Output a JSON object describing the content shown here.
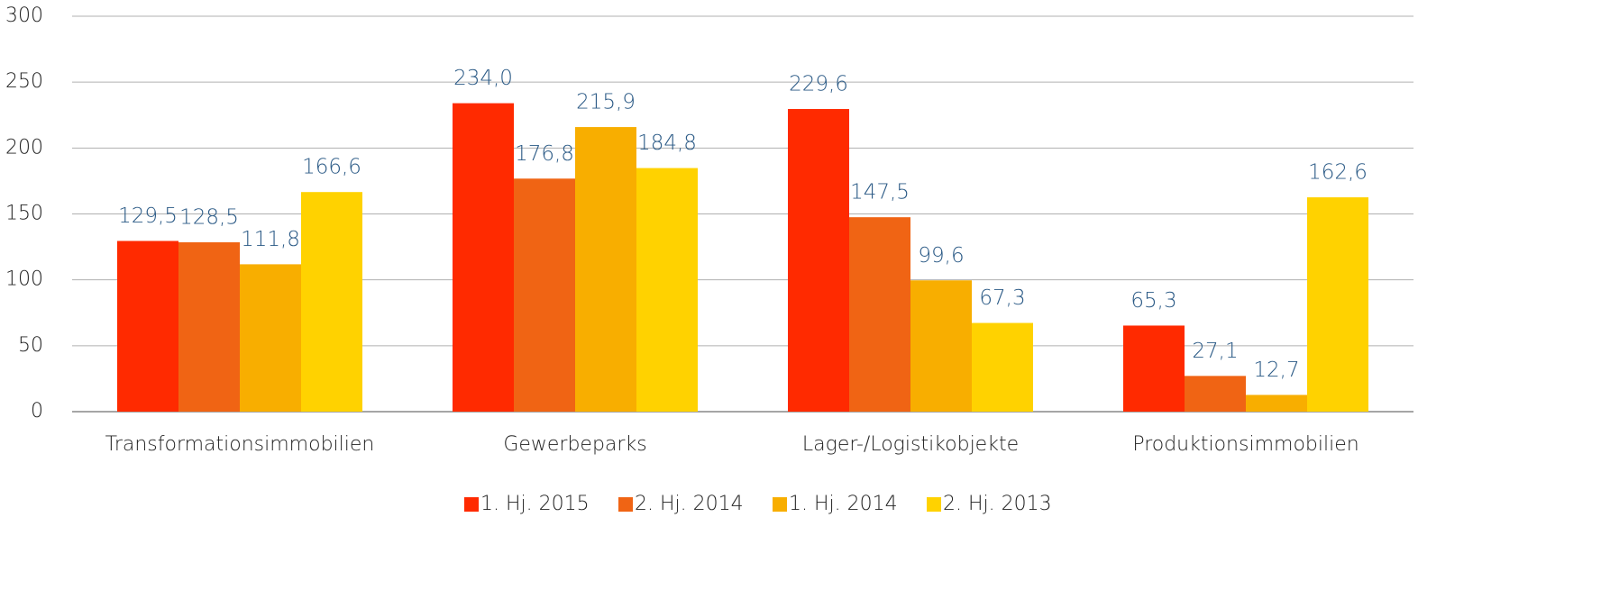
{
  "chart_data": {
    "type": "bar",
    "categories": [
      "Transformationsimmobilien",
      "Gewerbeparks",
      "Lager-/Logistikobjekte",
      "Produktionsimmobilien"
    ],
    "series": [
      {
        "name": "1. Hj. 2015",
        "color": "#ff2a00",
        "values": [
          129.5,
          234.0,
          229.6,
          65.3
        ],
        "value_labels": [
          "129,5",
          "234,0",
          "229,6",
          "65,3"
        ]
      },
      {
        "name": "2. Hj. 2014",
        "color": "#f06414",
        "values": [
          128.5,
          176.8,
          147.5,
          27.1
        ],
        "value_labels": [
          "128,5",
          "176,8",
          "147,5",
          "27,1"
        ]
      },
      {
        "name": "1. Hj. 2014",
        "color": "#f8ae00",
        "values": [
          111.8,
          215.9,
          99.6,
          12.7
        ],
        "value_labels": [
          "111,8",
          "215,9",
          "99,6",
          "12,7"
        ]
      },
      {
        "name": "2. Hj. 2013",
        "color": "#ffd200",
        "values": [
          166.6,
          184.8,
          67.3,
          162.6
        ],
        "value_labels": [
          "166,6",
          "184,8",
          "67,3",
          "162,6"
        ]
      }
    ],
    "ylim": [
      0,
      300
    ],
    "yticks": [
      0,
      50,
      100,
      150,
      200,
      250,
      300
    ],
    "grid": true,
    "legend": "bottom"
  }
}
